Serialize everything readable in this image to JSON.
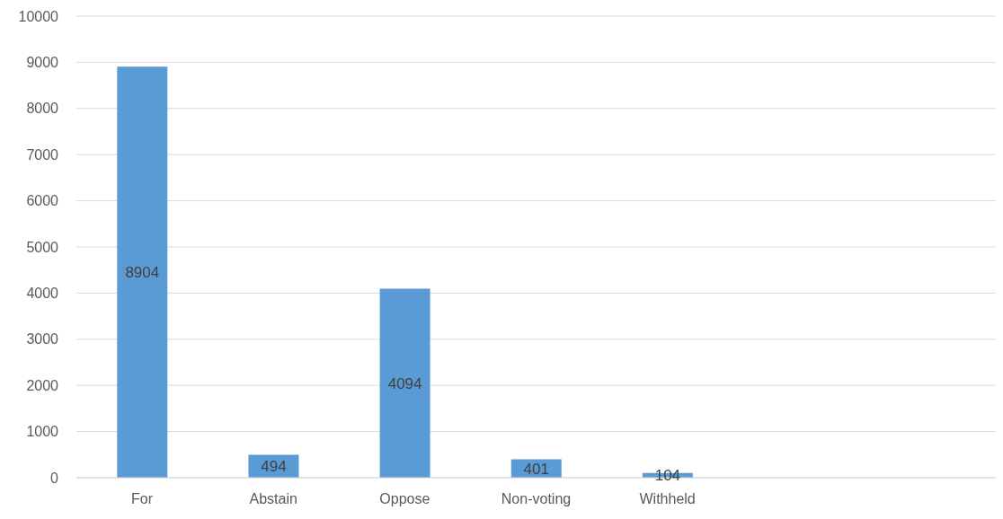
{
  "chart_data": {
    "type": "bar",
    "categories": [
      "For",
      "Abstain",
      "Oppose",
      "Non-voting",
      "Withheld",
      null,
      null
    ],
    "values": [
      8904,
      494,
      4094,
      401,
      104,
      null,
      null
    ],
    "color": "#5b9bd5",
    "ylim": [
      0,
      10000
    ],
    "yticks": [
      0,
      1000,
      2000,
      3000,
      4000,
      5000,
      6000,
      7000,
      8000,
      9000,
      10000
    ],
    "grid": "y",
    "data_labels": true
  }
}
